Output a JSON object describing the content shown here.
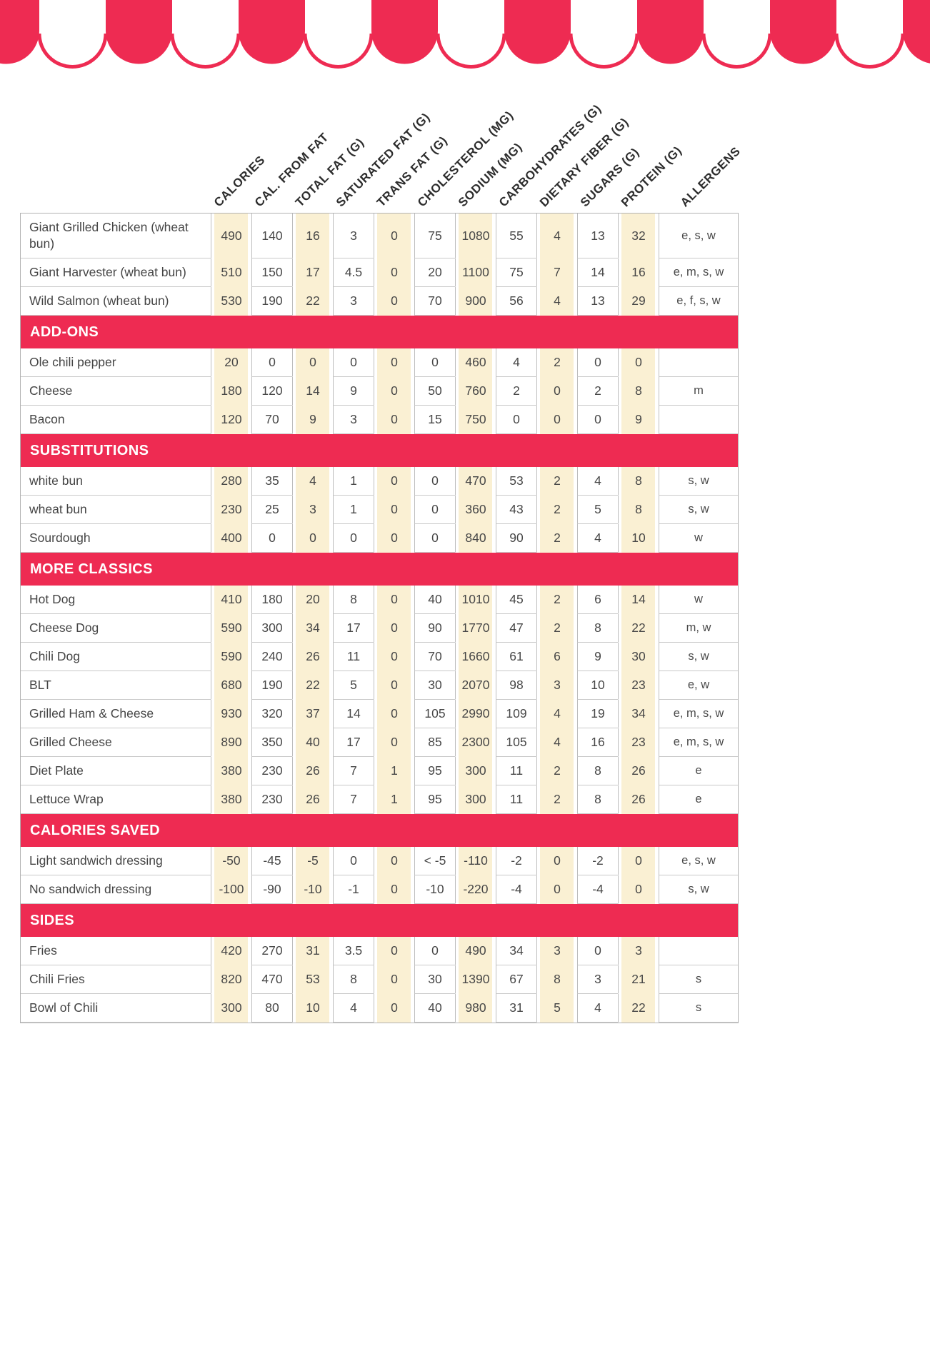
{
  "theme": {
    "accent_red": "#EE2B52",
    "highlight_cream": "#FAF0D3",
    "grid_gray": "#C9C9C9",
    "outer_border_gray": "#B2B2B2"
  },
  "columns": [
    "CALORIES",
    "CAL. FROM FAT",
    "TOTAL FAT (G)",
    "SATURATED FAT (G)",
    "TRANS FAT (G)",
    "CHOLESTEROL (MG)",
    "SODIUM (MG)",
    "CARBOHYDRATES (G)",
    "DIETARY FIBER (G)",
    "SUGARS (G)",
    "PROTEIN (G)",
    "ALLERGENS"
  ],
  "sections": [
    {
      "header": "",
      "rows": [
        {
          "name": "Giant Grilled Chicken (wheat bun)",
          "values": [
            "490",
            "140",
            "16",
            "3",
            "0",
            "75",
            "1080",
            "55",
            "4",
            "13",
            "32"
          ],
          "allergens": "e, s, w"
        },
        {
          "name": "Giant Harvester (wheat bun)",
          "values": [
            "510",
            "150",
            "17",
            "4.5",
            "0",
            "20",
            "1100",
            "75",
            "7",
            "14",
            "16"
          ],
          "allergens": "e, m, s, w"
        },
        {
          "name": "Wild Salmon (wheat bun)",
          "values": [
            "530",
            "190",
            "22",
            "3",
            "0",
            "70",
            "900",
            "56",
            "4",
            "13",
            "29"
          ],
          "allergens": "e, f, s, w"
        }
      ]
    },
    {
      "header": "ADD-ONS",
      "rows": [
        {
          "name": "Ole chili pepper",
          "values": [
            "20",
            "0",
            "0",
            "0",
            "0",
            "0",
            "460",
            "4",
            "2",
            "0",
            "0"
          ],
          "allergens": ""
        },
        {
          "name": "Cheese",
          "values": [
            "180",
            "120",
            "14",
            "9",
            "0",
            "50",
            "760",
            "2",
            "0",
            "2",
            "8"
          ],
          "allergens": "m"
        },
        {
          "name": "Bacon",
          "values": [
            "120",
            "70",
            "9",
            "3",
            "0",
            "15",
            "750",
            "0",
            "0",
            "0",
            "9"
          ],
          "allergens": ""
        }
      ]
    },
    {
      "header": "SUBSTITUTIONS",
      "rows": [
        {
          "name": "white bun",
          "values": [
            "280",
            "35",
            "4",
            "1",
            "0",
            "0",
            "470",
            "53",
            "2",
            "4",
            "8"
          ],
          "allergens": "s, w"
        },
        {
          "name": "wheat bun",
          "values": [
            "230",
            "25",
            "3",
            "1",
            "0",
            "0",
            "360",
            "43",
            "2",
            "5",
            "8"
          ],
          "allergens": "s, w"
        },
        {
          "name": "Sourdough",
          "values": [
            "400",
            "0",
            "0",
            "0",
            "0",
            "0",
            "840",
            "90",
            "2",
            "4",
            "10"
          ],
          "allergens": "w"
        }
      ]
    },
    {
      "header": "MORE CLASSICS",
      "rows": [
        {
          "name": "Hot Dog",
          "values": [
            "410",
            "180",
            "20",
            "8",
            "0",
            "40",
            "1010",
            "45",
            "2",
            "6",
            "14"
          ],
          "allergens": "w"
        },
        {
          "name": "Cheese Dog",
          "values": [
            "590",
            "300",
            "34",
            "17",
            "0",
            "90",
            "1770",
            "47",
            "2",
            "8",
            "22"
          ],
          "allergens": "m, w"
        },
        {
          "name": "Chili Dog",
          "values": [
            "590",
            "240",
            "26",
            "11",
            "0",
            "70",
            "1660",
            "61",
            "6",
            "9",
            "30"
          ],
          "allergens": "s, w"
        },
        {
          "name": "BLT",
          "values": [
            "680",
            "190",
            "22",
            "5",
            "0",
            "30",
            "2070",
            "98",
            "3",
            "10",
            "23"
          ],
          "allergens": "e, w"
        },
        {
          "name": "Grilled Ham & Cheese",
          "values": [
            "930",
            "320",
            "37",
            "14",
            "0",
            "105",
            "2990",
            "109",
            "4",
            "19",
            "34"
          ],
          "allergens": "e, m, s, w"
        },
        {
          "name": "Grilled Cheese",
          "values": [
            "890",
            "350",
            "40",
            "17",
            "0",
            "85",
            "2300",
            "105",
            "4",
            "16",
            "23"
          ],
          "allergens": "e, m, s, w"
        },
        {
          "name": "Diet Plate",
          "values": [
            "380",
            "230",
            "26",
            "7",
            "1",
            "95",
            "300",
            "11",
            "2",
            "8",
            "26"
          ],
          "allergens": "e"
        },
        {
          "name": "Lettuce Wrap",
          "values": [
            "380",
            "230",
            "26",
            "7",
            "1",
            "95",
            "300",
            "11",
            "2",
            "8",
            "26"
          ],
          "allergens": "e"
        }
      ]
    },
    {
      "header": "CALORIES SAVED",
      "rows": [
        {
          "name": "Light sandwich dressing",
          "values": [
            "-50",
            "-45",
            "-5",
            "0",
            "0",
            "< -5",
            "-110",
            "-2",
            "0",
            "-2",
            "0"
          ],
          "allergens": "e, s, w"
        },
        {
          "name": "No sandwich dressing",
          "values": [
            "-100",
            "-90",
            "-10",
            "-1",
            "0",
            "-10",
            "-220",
            "-4",
            "0",
            "-4",
            "0"
          ],
          "allergens": "s, w"
        }
      ]
    },
    {
      "header": "SIDES",
      "rows": [
        {
          "name": "Fries",
          "values": [
            "420",
            "270",
            "31",
            "3.5",
            "0",
            "0",
            "490",
            "34",
            "3",
            "0",
            "3"
          ],
          "allergens": ""
        },
        {
          "name": "Chili Fries",
          "values": [
            "820",
            "470",
            "53",
            "8",
            "0",
            "30",
            "1390",
            "67",
            "8",
            "3",
            "21"
          ],
          "allergens": "s"
        },
        {
          "name": "Bowl of Chili",
          "values": [
            "300",
            "80",
            "10",
            "4",
            "0",
            "40",
            "980",
            "31",
            "5",
            "4",
            "22"
          ],
          "allergens": "s"
        }
      ]
    }
  ]
}
